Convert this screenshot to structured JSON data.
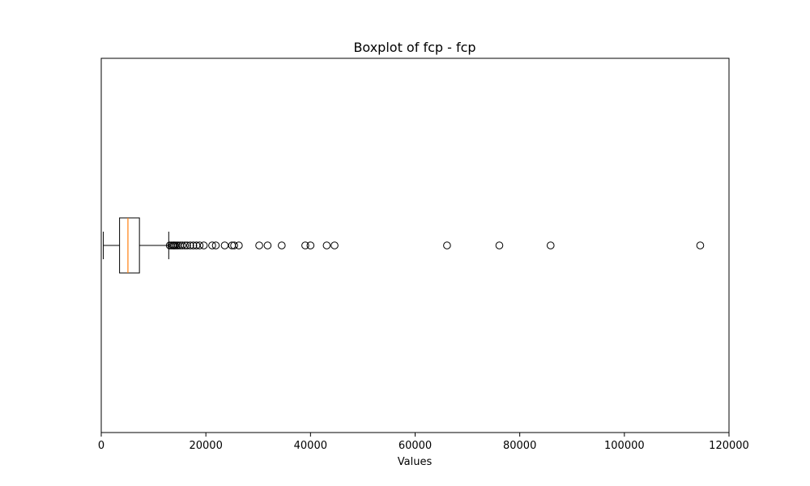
{
  "chart_data": {
    "type": "boxplot",
    "orientation": "horizontal",
    "title": "Boxplot of fcp - fcp",
    "xlabel": "Values",
    "ylabel": "",
    "xlim": [
      0,
      120000
    ],
    "x_ticks": [
      0,
      20000,
      40000,
      60000,
      80000,
      100000,
      120000
    ],
    "x_tick_labels": [
      "0",
      "20000",
      "40000",
      "60000",
      "80000",
      "100000",
      "120000"
    ],
    "grid": false,
    "box": {
      "whisker_low": 400,
      "q1": 3500,
      "median": 5100,
      "q3": 7300,
      "whisker_high": 12900
    },
    "outliers": [
      13100,
      13400,
      13700,
      13900,
      14100,
      14400,
      14700,
      15100,
      15500,
      16000,
      16400,
      17000,
      17600,
      18200,
      18800,
      19600,
      21200,
      21900,
      23600,
      25000,
      25400,
      26300,
      30200,
      31800,
      34500,
      39000,
      40000,
      43100,
      44600,
      66100,
      76100,
      85900,
      114500
    ],
    "colors": {
      "box": "#000000",
      "median": "#ff7f0e",
      "outlier_edge": "#000000"
    }
  }
}
